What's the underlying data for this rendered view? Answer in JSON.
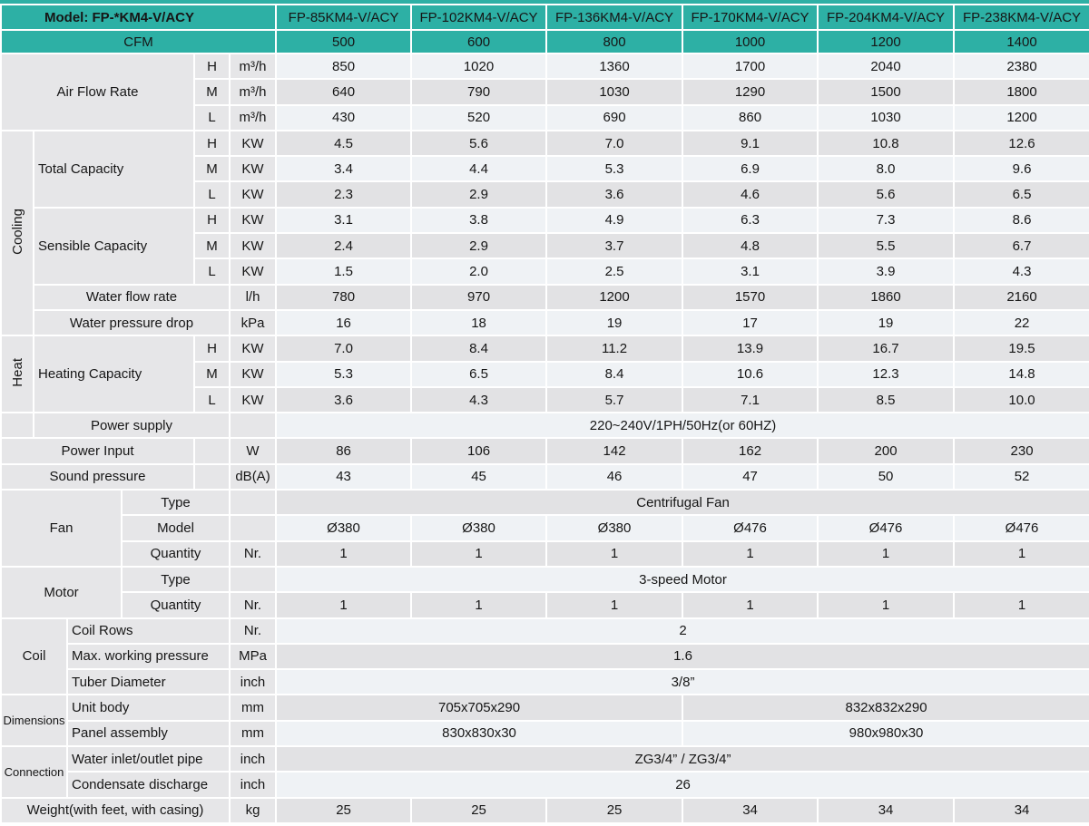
{
  "accent_color": "#2db0a5",
  "stripe_light": "#eff2f5",
  "stripe_gray": "#e2e2e4",
  "label_gray": "#e6e6e8",
  "table": {
    "rows": [
      {
        "h": 28,
        "cells": [
          {
            "t": "Model: FP-*KM4-V/ACY",
            "cs": 6,
            "k": "t",
            "b": 1,
            "n": "model-title",
            "mp": 1
          },
          {
            "t": "FP-85KM4-V/ACY",
            "k": "t",
            "n": "column-header"
          },
          {
            "t": "FP-102KM4-V/ACY",
            "k": "t",
            "n": "column-header"
          },
          {
            "t": "FP-136KM4-V/ACY",
            "k": "t",
            "n": "column-header"
          },
          {
            "t": "FP-170KM4-V/ACY",
            "k": "t",
            "n": "column-header"
          },
          {
            "t": "FP-204KM4-V/ACY",
            "k": "t",
            "n": "column-header"
          },
          {
            "t": "FP-238KM4-V/ACY",
            "k": "t",
            "n": "column-header"
          }
        ]
      },
      {
        "h": 26,
        "cells": [
          {
            "t": "CFM",
            "cs": 6,
            "k": "t",
            "n": "cfm-label"
          },
          {
            "t": "500",
            "k": "t",
            "n": "cfm-value"
          },
          {
            "t": "600",
            "k": "t",
            "n": "cfm-value"
          },
          {
            "t": "800",
            "k": "t",
            "n": "cfm-value"
          },
          {
            "t": "1000",
            "k": "t",
            "n": "cfm-value"
          },
          {
            "t": "1200",
            "k": "t",
            "n": "cfm-value"
          },
          {
            "t": "1400",
            "k": "t",
            "n": "cfm-value"
          }
        ]
      },
      {
        "cells": [
          {
            "t": "Air Flow Rate",
            "cs": 4,
            "rs": 3,
            "k": "l",
            "n": "row-label"
          },
          {
            "t": "H",
            "k": "u",
            "n": "speed-level"
          },
          {
            "t": "m³/h",
            "k": "u",
            "n": "unit-cell"
          },
          {
            "t": "850"
          },
          {
            "t": "1020"
          },
          {
            "t": "1360"
          },
          {
            "t": "1700"
          },
          {
            "t": "2040"
          },
          {
            "t": "2380"
          }
        ]
      },
      {
        "cells": [
          {
            "t": "M",
            "k": "u",
            "n": "speed-level"
          },
          {
            "t": "m³/h",
            "k": "u",
            "n": "unit-cell"
          },
          {
            "t": "640"
          },
          {
            "t": "790"
          },
          {
            "t": "1030"
          },
          {
            "t": "1290"
          },
          {
            "t": "1500"
          },
          {
            "t": "1800"
          }
        ]
      },
      {
        "cells": [
          {
            "t": "L",
            "k": "u",
            "n": "speed-level"
          },
          {
            "t": "m³/h",
            "k": "u",
            "n": "unit-cell"
          },
          {
            "t": "430"
          },
          {
            "t": "520"
          },
          {
            "t": "690"
          },
          {
            "t": "860"
          },
          {
            "t": "1030"
          },
          {
            "t": "1200"
          }
        ]
      },
      {
        "cells": [
          {
            "t": "Cooling",
            "rs": 8,
            "k": "l",
            "v": 1,
            "n": "section-label"
          },
          {
            "t": "Total Capacity",
            "cs": 3,
            "rs": 3,
            "k": "l",
            "a": "l",
            "n": "row-label"
          },
          {
            "t": "H",
            "k": "u",
            "n": "speed-level"
          },
          {
            "t": "KW",
            "k": "u",
            "n": "unit-cell"
          },
          {
            "t": "4.5"
          },
          {
            "t": "5.6"
          },
          {
            "t": "7.0"
          },
          {
            "t": "9.1"
          },
          {
            "t": "10.8"
          },
          {
            "t": "12.6"
          }
        ]
      },
      {
        "cells": [
          {
            "t": "M",
            "k": "u",
            "n": "speed-level"
          },
          {
            "t": "KW",
            "k": "u",
            "n": "unit-cell"
          },
          {
            "t": "3.4"
          },
          {
            "t": "4.4"
          },
          {
            "t": "5.3"
          },
          {
            "t": "6.9"
          },
          {
            "t": "8.0"
          },
          {
            "t": "9.6"
          }
        ]
      },
      {
        "cells": [
          {
            "t": "L",
            "k": "u",
            "n": "speed-level"
          },
          {
            "t": "KW",
            "k": "u",
            "n": "unit-cell"
          },
          {
            "t": "2.3"
          },
          {
            "t": "2.9"
          },
          {
            "t": "3.6"
          },
          {
            "t": "4.6"
          },
          {
            "t": "5.6"
          },
          {
            "t": "6.5"
          }
        ]
      },
      {
        "cells": [
          {
            "t": "Sensible Capacity",
            "cs": 3,
            "rs": 3,
            "k": "l",
            "a": "l",
            "n": "row-label"
          },
          {
            "t": "H",
            "k": "u",
            "n": "speed-level"
          },
          {
            "t": "KW",
            "k": "u",
            "n": "unit-cell"
          },
          {
            "t": "3.1"
          },
          {
            "t": "3.8"
          },
          {
            "t": "4.9"
          },
          {
            "t": "6.3"
          },
          {
            "t": "7.3"
          },
          {
            "t": "8.6"
          }
        ]
      },
      {
        "cells": [
          {
            "t": "M",
            "k": "u",
            "n": "speed-level"
          },
          {
            "t": "KW",
            "k": "u",
            "n": "unit-cell"
          },
          {
            "t": "2.4"
          },
          {
            "t": "2.9"
          },
          {
            "t": "3.7"
          },
          {
            "t": "4.8"
          },
          {
            "t": "5.5"
          },
          {
            "t": "6.7"
          }
        ]
      },
      {
        "cells": [
          {
            "t": "L",
            "k": "u",
            "n": "speed-level"
          },
          {
            "t": "KW",
            "k": "u",
            "n": "unit-cell"
          },
          {
            "t": "1.5"
          },
          {
            "t": "2.0"
          },
          {
            "t": "2.5"
          },
          {
            "t": "3.1"
          },
          {
            "t": "3.9"
          },
          {
            "t": "4.3"
          }
        ]
      },
      {
        "cells": [
          {
            "t": "Water flow rate",
            "cs": 4,
            "k": "l",
            "n": "row-label"
          },
          {
            "t": "l/h",
            "k": "u",
            "n": "unit-cell"
          },
          {
            "t": "780"
          },
          {
            "t": "970"
          },
          {
            "t": "1200"
          },
          {
            "t": "1570"
          },
          {
            "t": "1860"
          },
          {
            "t": "2160"
          }
        ]
      },
      {
        "cells": [
          {
            "t": "Water pressure drop",
            "cs": 4,
            "k": "l",
            "n": "row-label"
          },
          {
            "t": "kPa",
            "k": "u",
            "n": "unit-cell"
          },
          {
            "t": "16"
          },
          {
            "t": "18"
          },
          {
            "t": "19"
          },
          {
            "t": "17"
          },
          {
            "t": "19"
          },
          {
            "t": "22"
          }
        ]
      },
      {
        "cells": [
          {
            "t": "Heat",
            "rs": 3,
            "k": "l",
            "v": 1,
            "n": "section-label"
          },
          {
            "t": "Heating Capacity",
            "cs": 3,
            "rs": 3,
            "k": "l",
            "a": "l",
            "n": "row-label"
          },
          {
            "t": "H",
            "k": "u",
            "n": "speed-level"
          },
          {
            "t": "KW",
            "k": "u",
            "n": "unit-cell"
          },
          {
            "t": "7.0"
          },
          {
            "t": "8.4"
          },
          {
            "t": "11.2"
          },
          {
            "t": "13.9"
          },
          {
            "t": "16.7"
          },
          {
            "t": "19.5"
          }
        ]
      },
      {
        "cells": [
          {
            "t": "M",
            "k": "u",
            "n": "speed-level"
          },
          {
            "t": "KW",
            "k": "u",
            "n": "unit-cell"
          },
          {
            "t": "5.3"
          },
          {
            "t": "6.5"
          },
          {
            "t": "8.4"
          },
          {
            "t": "10.6"
          },
          {
            "t": "12.3"
          },
          {
            "t": "14.8"
          }
        ]
      },
      {
        "cells": [
          {
            "t": "L",
            "k": "u",
            "n": "speed-level"
          },
          {
            "t": "KW",
            "k": "u",
            "n": "unit-cell"
          },
          {
            "t": "3.6"
          },
          {
            "t": "4.3"
          },
          {
            "t": "5.7"
          },
          {
            "t": "7.1"
          },
          {
            "t": "8.5"
          },
          {
            "t": "10.0"
          }
        ]
      },
      {
        "cells": [
          {
            "t": "",
            "k": "l",
            "n": "spacer-cell"
          },
          {
            "t": "Power supply",
            "cs": 4,
            "k": "l",
            "n": "row-label"
          },
          {
            "t": "",
            "k": "u",
            "n": "spacer-cell"
          },
          {
            "t": "220~240V/1PH/50Hz(or 60HZ)",
            "cs": 6,
            "n": "spec-value"
          }
        ]
      },
      {
        "cells": [
          {
            "t": "Power Input",
            "cs": 4,
            "k": "l",
            "n": "row-label"
          },
          {
            "t": "",
            "k": "u",
            "n": "spacer-cell"
          },
          {
            "t": "W",
            "k": "u",
            "n": "unit-cell"
          },
          {
            "t": "86"
          },
          {
            "t": "106"
          },
          {
            "t": "142"
          },
          {
            "t": "162"
          },
          {
            "t": "200"
          },
          {
            "t": "230"
          }
        ]
      },
      {
        "cells": [
          {
            "t": "Sound pressure",
            "cs": 4,
            "k": "l",
            "n": "row-label"
          },
          {
            "t": "",
            "k": "u",
            "n": "spacer-cell"
          },
          {
            "t": "dB(A)",
            "k": "u",
            "n": "unit-cell"
          },
          {
            "t": "43"
          },
          {
            "t": "45"
          },
          {
            "t": "46"
          },
          {
            "t": "47"
          },
          {
            "t": "50"
          },
          {
            "t": "52"
          }
        ]
      },
      {
        "cells": [
          {
            "t": "Fan",
            "cs": 3,
            "rs": 3,
            "k": "l",
            "n": "section-label"
          },
          {
            "t": "Type",
            "cs": 2,
            "k": "l",
            "n": "row-label"
          },
          {
            "t": "",
            "k": "u",
            "n": "spacer-cell"
          },
          {
            "t": "Centrifugal Fan",
            "cs": 6,
            "n": "spec-value"
          }
        ]
      },
      {
        "cells": [
          {
            "t": "Model",
            "cs": 2,
            "k": "l",
            "n": "row-label"
          },
          {
            "t": "",
            "k": "u",
            "n": "spacer-cell"
          },
          {
            "t": "Ø380"
          },
          {
            "t": "Ø380"
          },
          {
            "t": "Ø380"
          },
          {
            "t": "Ø476"
          },
          {
            "t": "Ø476"
          },
          {
            "t": "Ø476"
          }
        ]
      },
      {
        "cells": [
          {
            "t": "Quantity",
            "cs": 2,
            "k": "l",
            "n": "row-label"
          },
          {
            "t": "Nr.",
            "k": "u",
            "n": "unit-cell"
          },
          {
            "t": "1"
          },
          {
            "t": "1"
          },
          {
            "t": "1"
          },
          {
            "t": "1"
          },
          {
            "t": "1"
          },
          {
            "t": "1"
          }
        ]
      },
      {
        "cells": [
          {
            "t": "Motor",
            "cs": 3,
            "rs": 2,
            "k": "l",
            "n": "section-label"
          },
          {
            "t": "Type",
            "cs": 2,
            "k": "l",
            "n": "row-label"
          },
          {
            "t": "",
            "k": "u",
            "n": "spacer-cell"
          },
          {
            "t": "3-speed Motor",
            "cs": 6,
            "n": "spec-value"
          }
        ]
      },
      {
        "cells": [
          {
            "t": "Quantity",
            "cs": 2,
            "k": "l",
            "n": "row-label"
          },
          {
            "t": "Nr.",
            "k": "u",
            "n": "unit-cell"
          },
          {
            "t": "1"
          },
          {
            "t": "1"
          },
          {
            "t": "1"
          },
          {
            "t": "1"
          },
          {
            "t": "1"
          },
          {
            "t": "1"
          }
        ]
      },
      {
        "cells": [
          {
            "t": "Coil",
            "cs": 2,
            "rs": 3,
            "k": "l",
            "n": "section-label"
          },
          {
            "t": "Coil Rows",
            "cs": 3,
            "k": "l",
            "a": "l",
            "n": "row-label"
          },
          {
            "t": "Nr.",
            "k": "u",
            "n": "unit-cell"
          },
          {
            "t": "2",
            "cs": 6,
            "n": "spec-value"
          }
        ]
      },
      {
        "cells": [
          {
            "t": "Max. working pressure",
            "cs": 3,
            "k": "l",
            "a": "l",
            "n": "row-label"
          },
          {
            "t": "MPa",
            "k": "u",
            "n": "unit-cell"
          },
          {
            "t": "1.6",
            "cs": 6,
            "n": "spec-value"
          }
        ]
      },
      {
        "cells": [
          {
            "t": "Tuber Diameter",
            "cs": 3,
            "k": "l",
            "a": "l",
            "n": "row-label"
          },
          {
            "t": "inch",
            "k": "u",
            "n": "unit-cell"
          },
          {
            "t": "3/8”",
            "cs": 6,
            "n": "spec-value"
          }
        ]
      },
      {
        "cells": [
          {
            "t": "Dimensions",
            "cs": 2,
            "rs": 2,
            "k": "l",
            "f": 1,
            "n": "section-label"
          },
          {
            "t": "Unit body",
            "cs": 3,
            "k": "l",
            "a": "l",
            "n": "row-label"
          },
          {
            "t": "mm",
            "k": "u",
            "n": "unit-cell"
          },
          {
            "t": "705x705x290",
            "cs": 3,
            "n": "spec-value"
          },
          {
            "t": "832x832x290",
            "cs": 3,
            "n": "spec-value"
          }
        ]
      },
      {
        "cells": [
          {
            "t": "Panel assembly",
            "cs": 3,
            "k": "l",
            "a": "l",
            "n": "row-label"
          },
          {
            "t": "mm",
            "k": "u",
            "n": "unit-cell"
          },
          {
            "t": "830x830x30",
            "cs": 3,
            "n": "spec-value"
          },
          {
            "t": "980x980x30",
            "cs": 3,
            "n": "spec-value"
          }
        ]
      },
      {
        "cells": [
          {
            "t": "Connection",
            "cs": 2,
            "rs": 2,
            "k": "l",
            "f": 1,
            "n": "section-label"
          },
          {
            "t": "Water inlet/outlet pipe",
            "cs": 3,
            "k": "l",
            "a": "l",
            "n": "row-label"
          },
          {
            "t": "inch",
            "k": "u",
            "n": "unit-cell"
          },
          {
            "t": "ZG3/4” / ZG3/4”",
            "cs": 6,
            "n": "spec-value"
          }
        ]
      },
      {
        "cells": [
          {
            "t": "Condensate discharge",
            "cs": 3,
            "k": "l",
            "a": "l",
            "n": "row-label"
          },
          {
            "t": "inch",
            "k": "u",
            "n": "unit-cell"
          },
          {
            "t": "26",
            "cs": 6,
            "n": "spec-value"
          }
        ]
      },
      {
        "cells": [
          {
            "t": "Weight(with feet, with casing)",
            "cs": 5,
            "k": "l",
            "n": "row-label"
          },
          {
            "t": "kg",
            "k": "u",
            "n": "unit-cell"
          },
          {
            "t": "25"
          },
          {
            "t": "25"
          },
          {
            "t": "25"
          },
          {
            "t": "34"
          },
          {
            "t": "34"
          },
          {
            "t": "34"
          }
        ]
      }
    ]
  }
}
